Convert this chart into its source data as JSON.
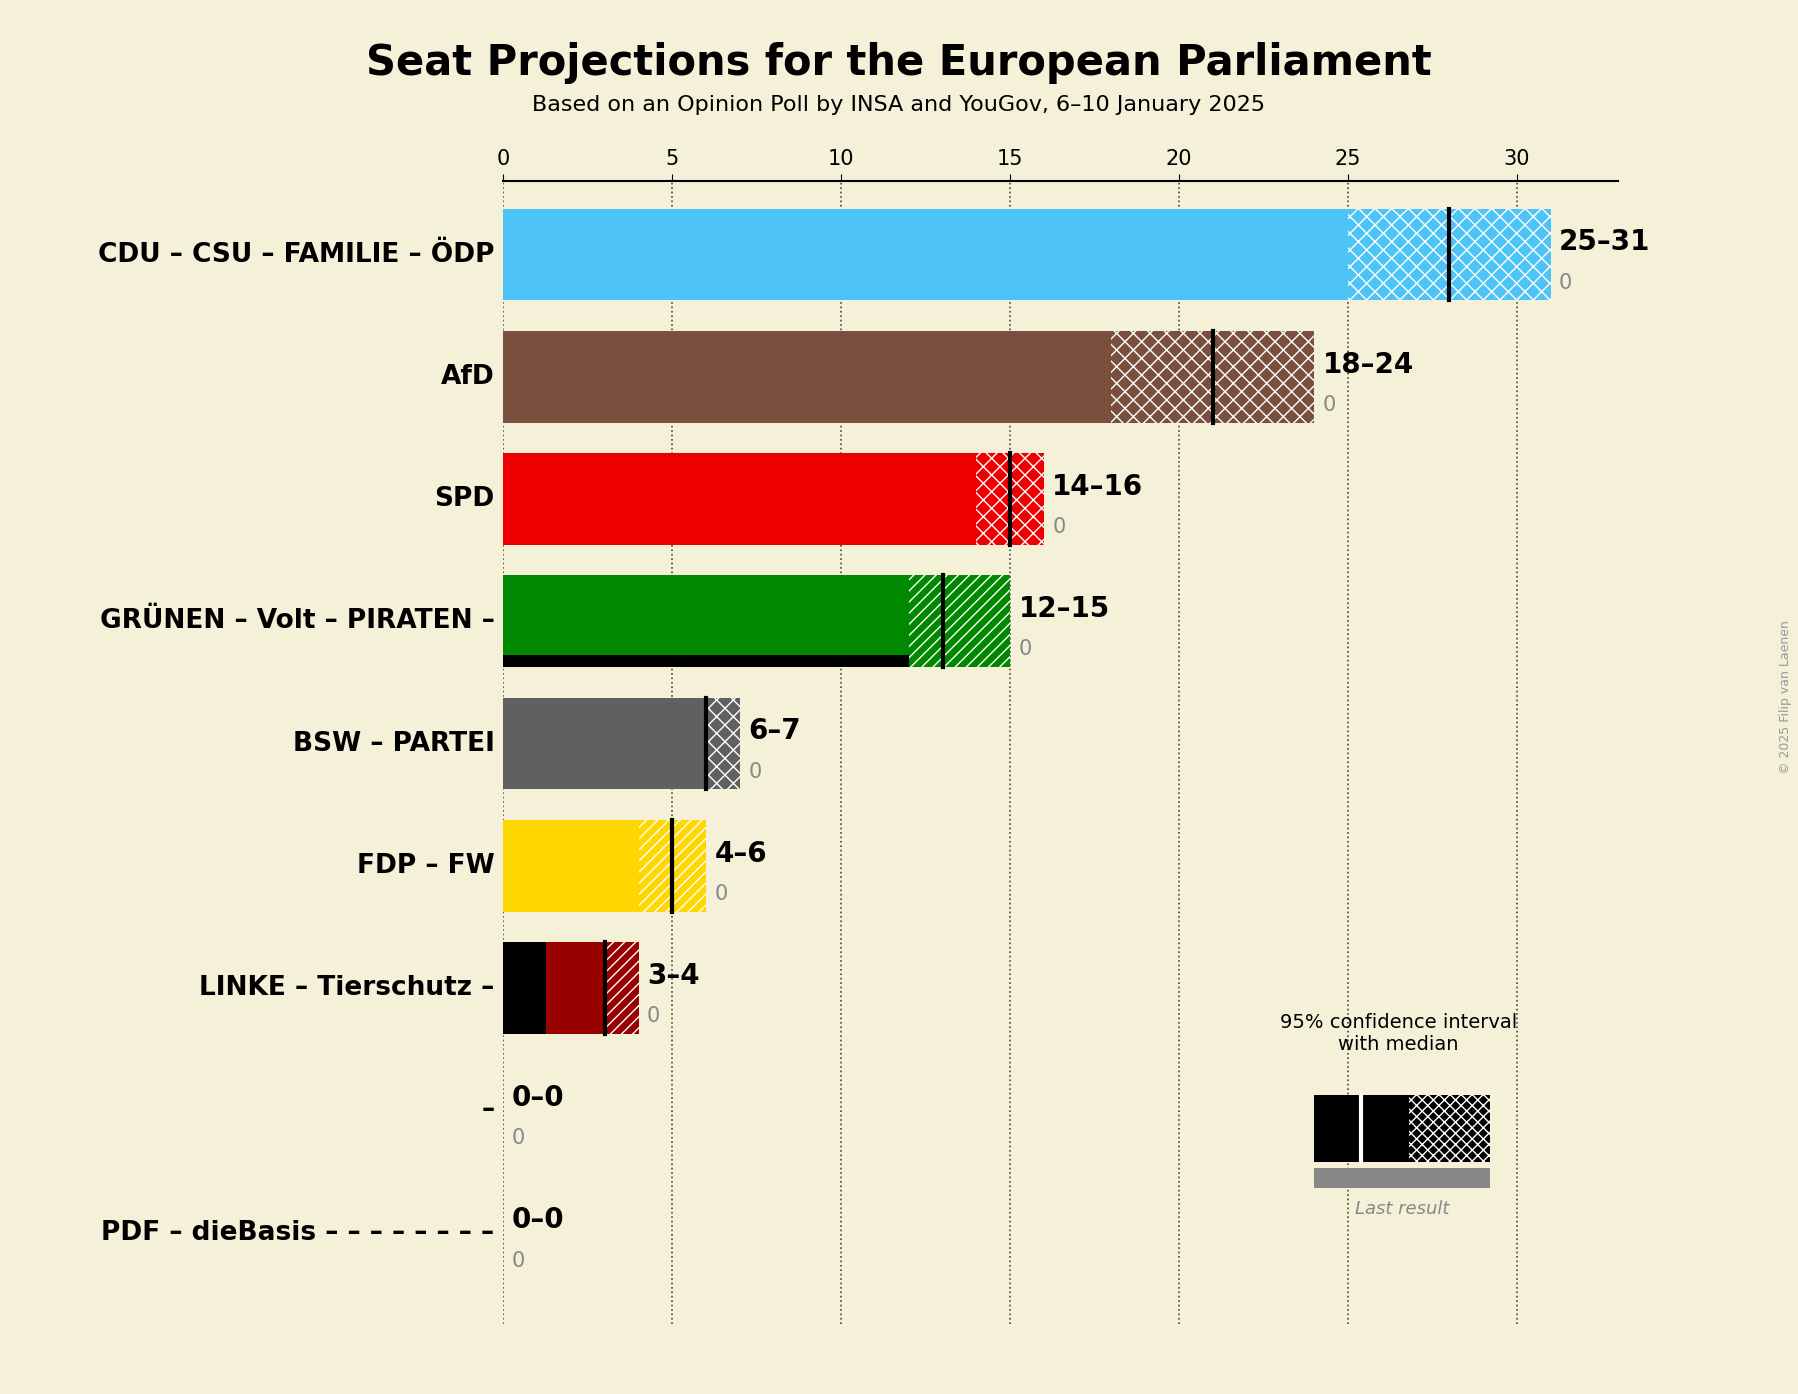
{
  "title": "Seat Projections for the European Parliament",
  "subtitle": "Based on an Opinion Poll by INSA and YouGov, 6–10 January 2025",
  "copyright": "© 2025 Filip van Laenen",
  "background_color": "#f5f0d8",
  "parties": [
    {
      "name": "CDU – CSU – FAMILIE – ÖDP",
      "low": 25,
      "median": 28,
      "high": 31,
      "last": 0,
      "solid_color": "#4DC3F7",
      "hatch": "xx",
      "label": "25–31"
    },
    {
      "name": "AfD",
      "low": 18,
      "median": 21,
      "high": 24,
      "last": 0,
      "solid_color": "#7B4F3E",
      "hatch": "xx",
      "label": "18–24"
    },
    {
      "name": "SPD",
      "low": 14,
      "median": 15,
      "high": 16,
      "last": 0,
      "solid_color": "#EE0000",
      "hatch": "xx",
      "label": "14–16"
    },
    {
      "name": "GRÜNEN – Volt – PIRATEN –",
      "low": 12,
      "median": 13,
      "high": 15,
      "last": 0,
      "solid_color": "#008800",
      "hatch": "///",
      "label": "12–15",
      "black_band": true
    },
    {
      "name": "BSW – PARTEI",
      "low": 6,
      "median": 6,
      "high": 7,
      "last": 0,
      "solid_color": "#606060",
      "hatch": "xx",
      "label": "6–7"
    },
    {
      "name": "FDP – FW",
      "low": 4,
      "median": 5,
      "high": 6,
      "last": 0,
      "solid_color": "#FFD700",
      "hatch": "///",
      "label": "4–6"
    },
    {
      "name": "LINKE – Tierschutz –",
      "low": 3,
      "median": 3,
      "high": 4,
      "last": 0,
      "solid_color": "#990000",
      "hatch": "///",
      "label": "3–4",
      "black_left": true
    },
    {
      "name": "–",
      "low": 0,
      "median": 0,
      "high": 0,
      "last": 0,
      "solid_color": null,
      "hatch": "",
      "label": "0–0"
    },
    {
      "name": "PDF – dieBasis – – – – – – – –",
      "low": 0,
      "median": 0,
      "high": 0,
      "last": 0,
      "solid_color": null,
      "hatch": "",
      "label": "0–0"
    }
  ],
  "xlim_data": 33,
  "xtick_positions": [
    0,
    5,
    10,
    15,
    20,
    25,
    30
  ],
  "bar_height": 0.75
}
